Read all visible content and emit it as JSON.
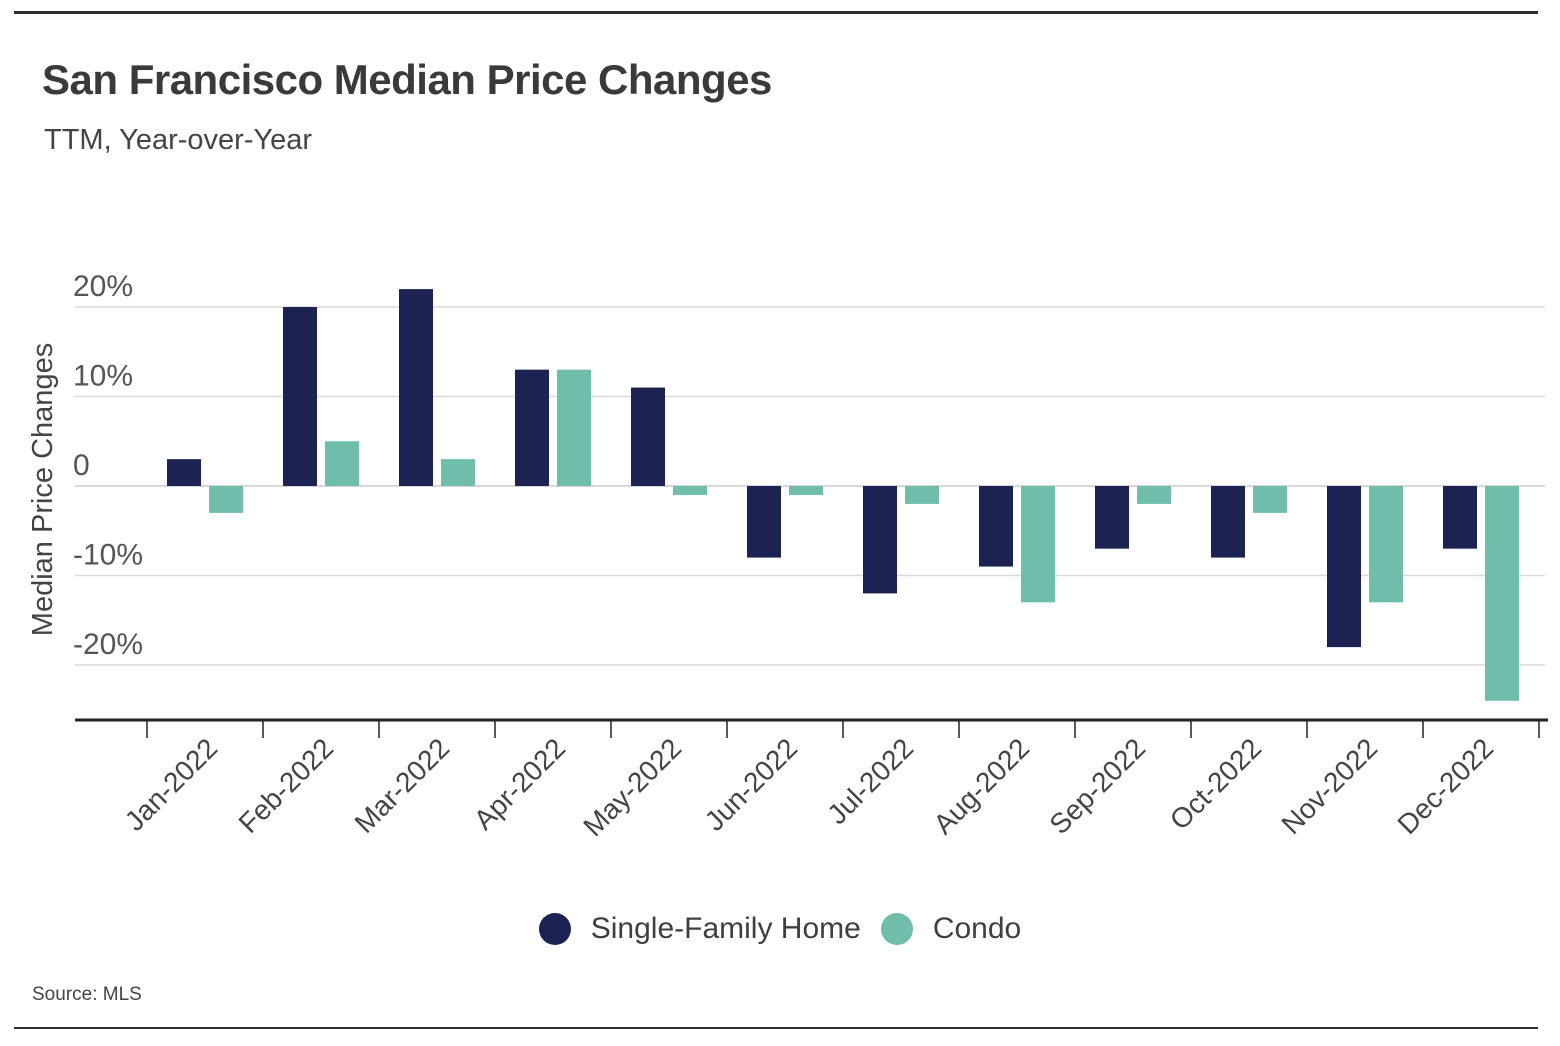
{
  "header": {
    "title": "San Francisco Median Price Changes",
    "subtitle": "TTM, Year-over-Year"
  },
  "footer": {
    "source": "Source:  MLS"
  },
  "colors": {
    "single_family": "#1c2252",
    "condo": "#6fbdaa",
    "grid": "#d9d9d9",
    "axis": "#222222"
  },
  "chart_data": {
    "type": "bar",
    "title": "San Francisco Median Price Changes",
    "subtitle": "TTM, Year-over-Year",
    "xlabel": "",
    "ylabel": "Median Price Changes",
    "ylim": [
      -26.5,
      22
    ],
    "yticks": [
      20,
      10,
      0,
      -10,
      -20
    ],
    "ytick_labels": [
      "20%",
      "10%",
      "0",
      "-10%",
      "-20%"
    ],
    "grid": true,
    "legend": "bottom-center",
    "categories": [
      "Jan-2022",
      "Feb-2022",
      "Mar-2022",
      "Apr-2022",
      "May-2022",
      "Jun-2022",
      "Jul-2022",
      "Aug-2022",
      "Sep-2022",
      "Oct-2022",
      "Nov-2022",
      "Dec-2022"
    ],
    "series": [
      {
        "name": "Single-Family Home",
        "color": "#1c2252",
        "values": [
          3,
          20,
          22,
          13,
          11,
          -8,
          -12,
          -9,
          -7,
          -8,
          -18,
          -7
        ]
      },
      {
        "name": "Condo",
        "color": "#6fbdaa",
        "values": [
          -3,
          5,
          3,
          13,
          -1,
          -1,
          -2,
          -13,
          -2,
          -3,
          -13,
          -24
        ]
      }
    ]
  }
}
